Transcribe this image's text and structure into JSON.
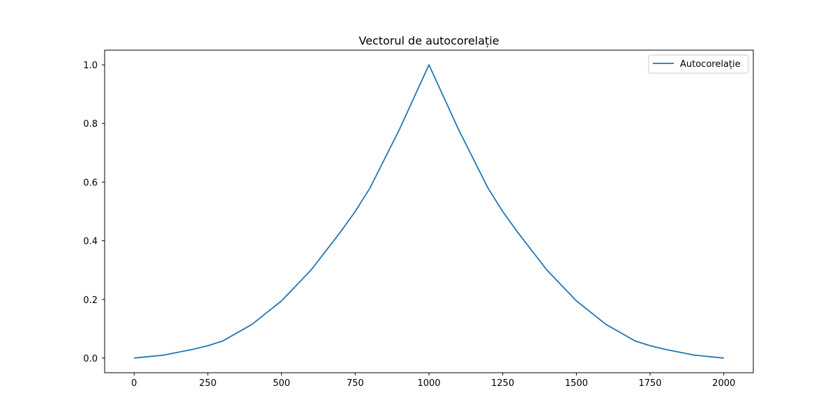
{
  "chart_data": {
    "type": "line",
    "title": "Vectorul de autocorelație",
    "xlabel": "",
    "ylabel": "",
    "xlim": [
      -100,
      2100
    ],
    "ylim": [
      -0.05,
      1.05
    ],
    "xticks": [
      0,
      250,
      500,
      750,
      1000,
      1250,
      1500,
      1750,
      2000
    ],
    "yticks": [
      0.0,
      0.2,
      0.4,
      0.6,
      0.8,
      1.0
    ],
    "xtick_labels": [
      "0",
      "250",
      "500",
      "750",
      "1000",
      "1250",
      "1500",
      "1750",
      "2000"
    ],
    "ytick_labels": [
      "0.0",
      "0.2",
      "0.4",
      "0.6",
      "0.8",
      "1.0"
    ],
    "grid": false,
    "legend_position": "top-right",
    "series": [
      {
        "name": "Autocorelație",
        "color": "#1f77b4",
        "x": [
          0,
          100,
          200,
          250,
          300,
          400,
          500,
          600,
          700,
          750,
          800,
          900,
          1000,
          1100,
          1200,
          1250,
          1300,
          1400,
          1500,
          1600,
          1700,
          1750,
          1800,
          1900,
          2000
        ],
        "y": [
          0.0,
          0.01,
          0.03,
          0.042,
          0.058,
          0.115,
          0.195,
          0.3,
          0.43,
          0.5,
          0.58,
          0.78,
          1.0,
          0.78,
          0.58,
          0.5,
          0.43,
          0.3,
          0.195,
          0.115,
          0.058,
          0.042,
          0.03,
          0.01,
          0.0
        ]
      }
    ]
  }
}
